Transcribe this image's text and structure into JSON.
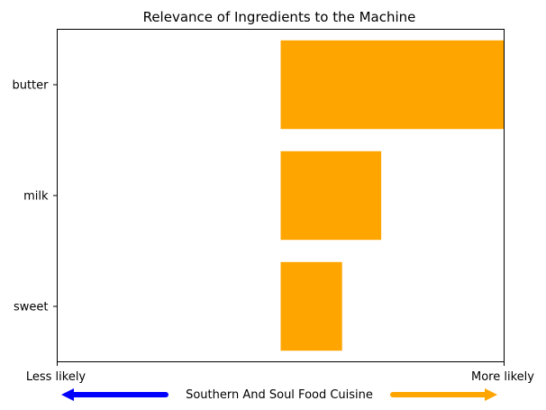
{
  "chart_data": {
    "type": "bar",
    "orientation": "horizontal",
    "title": "Relevance of Ingredients to the Machine",
    "categories": [
      "butter",
      "milk",
      "sweet"
    ],
    "values": [
      1.0,
      0.45,
      0.275
    ],
    "xlim": [
      -1,
      1
    ],
    "xlabel": "",
    "ylabel": "",
    "grid": false,
    "legend": "none",
    "x_left_label": "Less likely",
    "x_right_label": "More likely",
    "arrow_caption": "Southern And Soul Food Cuisine",
    "colors": {
      "bar": "#FFA500",
      "left_arrow": "#0000FF",
      "right_arrow": "#FFA500",
      "axes": "#000000"
    }
  }
}
